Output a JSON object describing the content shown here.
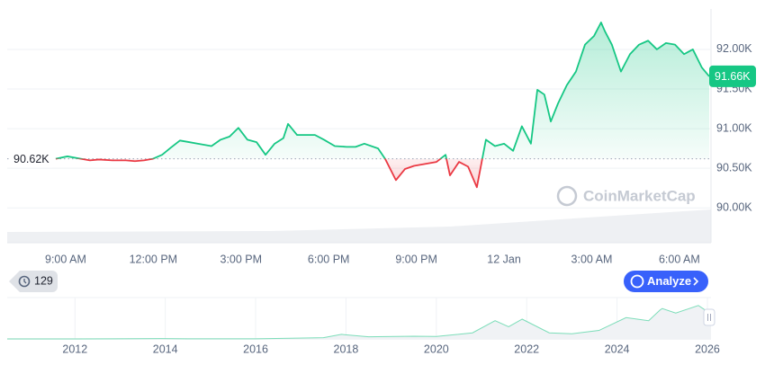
{
  "chart_data": [
    {
      "type": "line",
      "color": "#16c784",
      "down_color": "#ea3943",
      "x": [
        -0.34,
        0.06,
        0.52,
        0.83,
        1.14,
        1.6,
        2.06,
        2.37,
        2.68,
        2.99,
        3.3,
        3.6,
        3.91,
        4.22,
        4.53,
        4.99,
        5.3,
        5.61,
        5.91,
        6.22,
        6.53,
        6.84,
        7.15,
        7.45,
        7.61,
        7.92,
        8.22,
        8.53,
        8.84,
        9.21,
        9.61,
        9.92,
        10.22,
        10.69,
        10.93,
        11.3,
        11.61,
        11.92,
        12.38,
        12.69,
        13.0,
        13.15,
        13.46,
        13.77,
        14.07,
        14.38,
        14.69,
        15.0,
        15.31,
        15.61,
        15.92,
        16.14,
        16.38,
        16.6,
        16.85,
        17.15,
        17.46,
        17.77,
        18.08,
        18.32,
        18.45,
        18.69,
        19.0,
        19.31,
        19.62,
        19.93,
        20.23,
        20.54,
        20.85,
        21.16,
        21.46,
        21.77,
        22.02
      ],
      "values": [
        90.62,
        90.65,
        90.62,
        90.6,
        90.61,
        90.6,
        90.6,
        90.59,
        90.6,
        90.62,
        90.67,
        90.76,
        90.85,
        90.83,
        90.81,
        90.78,
        90.86,
        90.9,
        91.01,
        90.86,
        90.83,
        90.67,
        90.81,
        90.88,
        91.06,
        90.92,
        90.92,
        90.92,
        90.86,
        90.78,
        90.77,
        90.77,
        90.81,
        90.75,
        90.62,
        90.35,
        90.49,
        90.53,
        90.56,
        90.58,
        90.67,
        90.41,
        90.58,
        90.52,
        90.26,
        90.86,
        90.78,
        90.81,
        90.72,
        91.03,
        90.81,
        91.49,
        91.43,
        91.09,
        91.32,
        91.55,
        91.72,
        92.06,
        92.17,
        92.34,
        92.23,
        92.06,
        91.72,
        91.94,
        92.06,
        92.11,
        92.0,
        92.08,
        92.06,
        91.94,
        92.0,
        91.77,
        91.66
      ],
      "baseline": {
        "value": 90.62,
        "label": "90.62K"
      },
      "last_price": {
        "value": 91.66,
        "label": "91.66K"
      },
      "xlim": [
        -2.0,
        22.02
      ],
      "xticks": [
        {
          "value": 0,
          "label": "9:00 AM"
        },
        {
          "value": 3,
          "label": "12:00 PM"
        },
        {
          "value": 6,
          "label": "3:00 PM"
        },
        {
          "value": 9,
          "label": "6:00 PM"
        },
        {
          "value": 12,
          "label": "9:00 PM"
        },
        {
          "value": 15,
          "label": "12 Jan"
        },
        {
          "value": 18,
          "label": "3:00 AM"
        },
        {
          "value": 21,
          "label": "6:00 AM"
        }
      ],
      "ylim": [
        89.56,
        92.51
      ],
      "yticks": [
        {
          "value": 90,
          "label": "90.00K"
        },
        {
          "value": 90.5,
          "label": "90.50K"
        },
        {
          "value": 91,
          "label": "91.00K"
        },
        {
          "value": 91.5,
          "label": "91.50K"
        },
        {
          "value": 92,
          "label": "92.00K"
        }
      ],
      "grid": true,
      "watermark": "CoinMarketCap"
    },
    {
      "type": "area",
      "color": "#16c784",
      "x": [
        2010.5,
        2012.0,
        2013.9,
        2014.5,
        2016.0,
        2017.5,
        2017.9,
        2018.5,
        2019.5,
        2020.0,
        2020.8,
        2021.3,
        2021.6,
        2021.9,
        2022.5,
        2023.0,
        2023.6,
        2024.2,
        2024.7,
        2024.95,
        2025.0,
        2025.3,
        2025.8,
        2026.0,
        2026.08
      ],
      "values": [
        0,
        0,
        1,
        0.5,
        0.5,
        4,
        15,
        7,
        9,
        8,
        20,
        60,
        40,
        65,
        20,
        17,
        28,
        70,
        60,
        95,
        100,
        85,
        110,
        90,
        92
      ],
      "xlim": [
        2010.5,
        2026.08
      ],
      "xticks": [
        2012,
        2014,
        2016,
        2018,
        2020,
        2022,
        2024,
        2026
      ],
      "ylim": [
        0,
        130
      ]
    }
  ],
  "controls": {
    "history_count": 129,
    "analyze": "Analyze"
  }
}
